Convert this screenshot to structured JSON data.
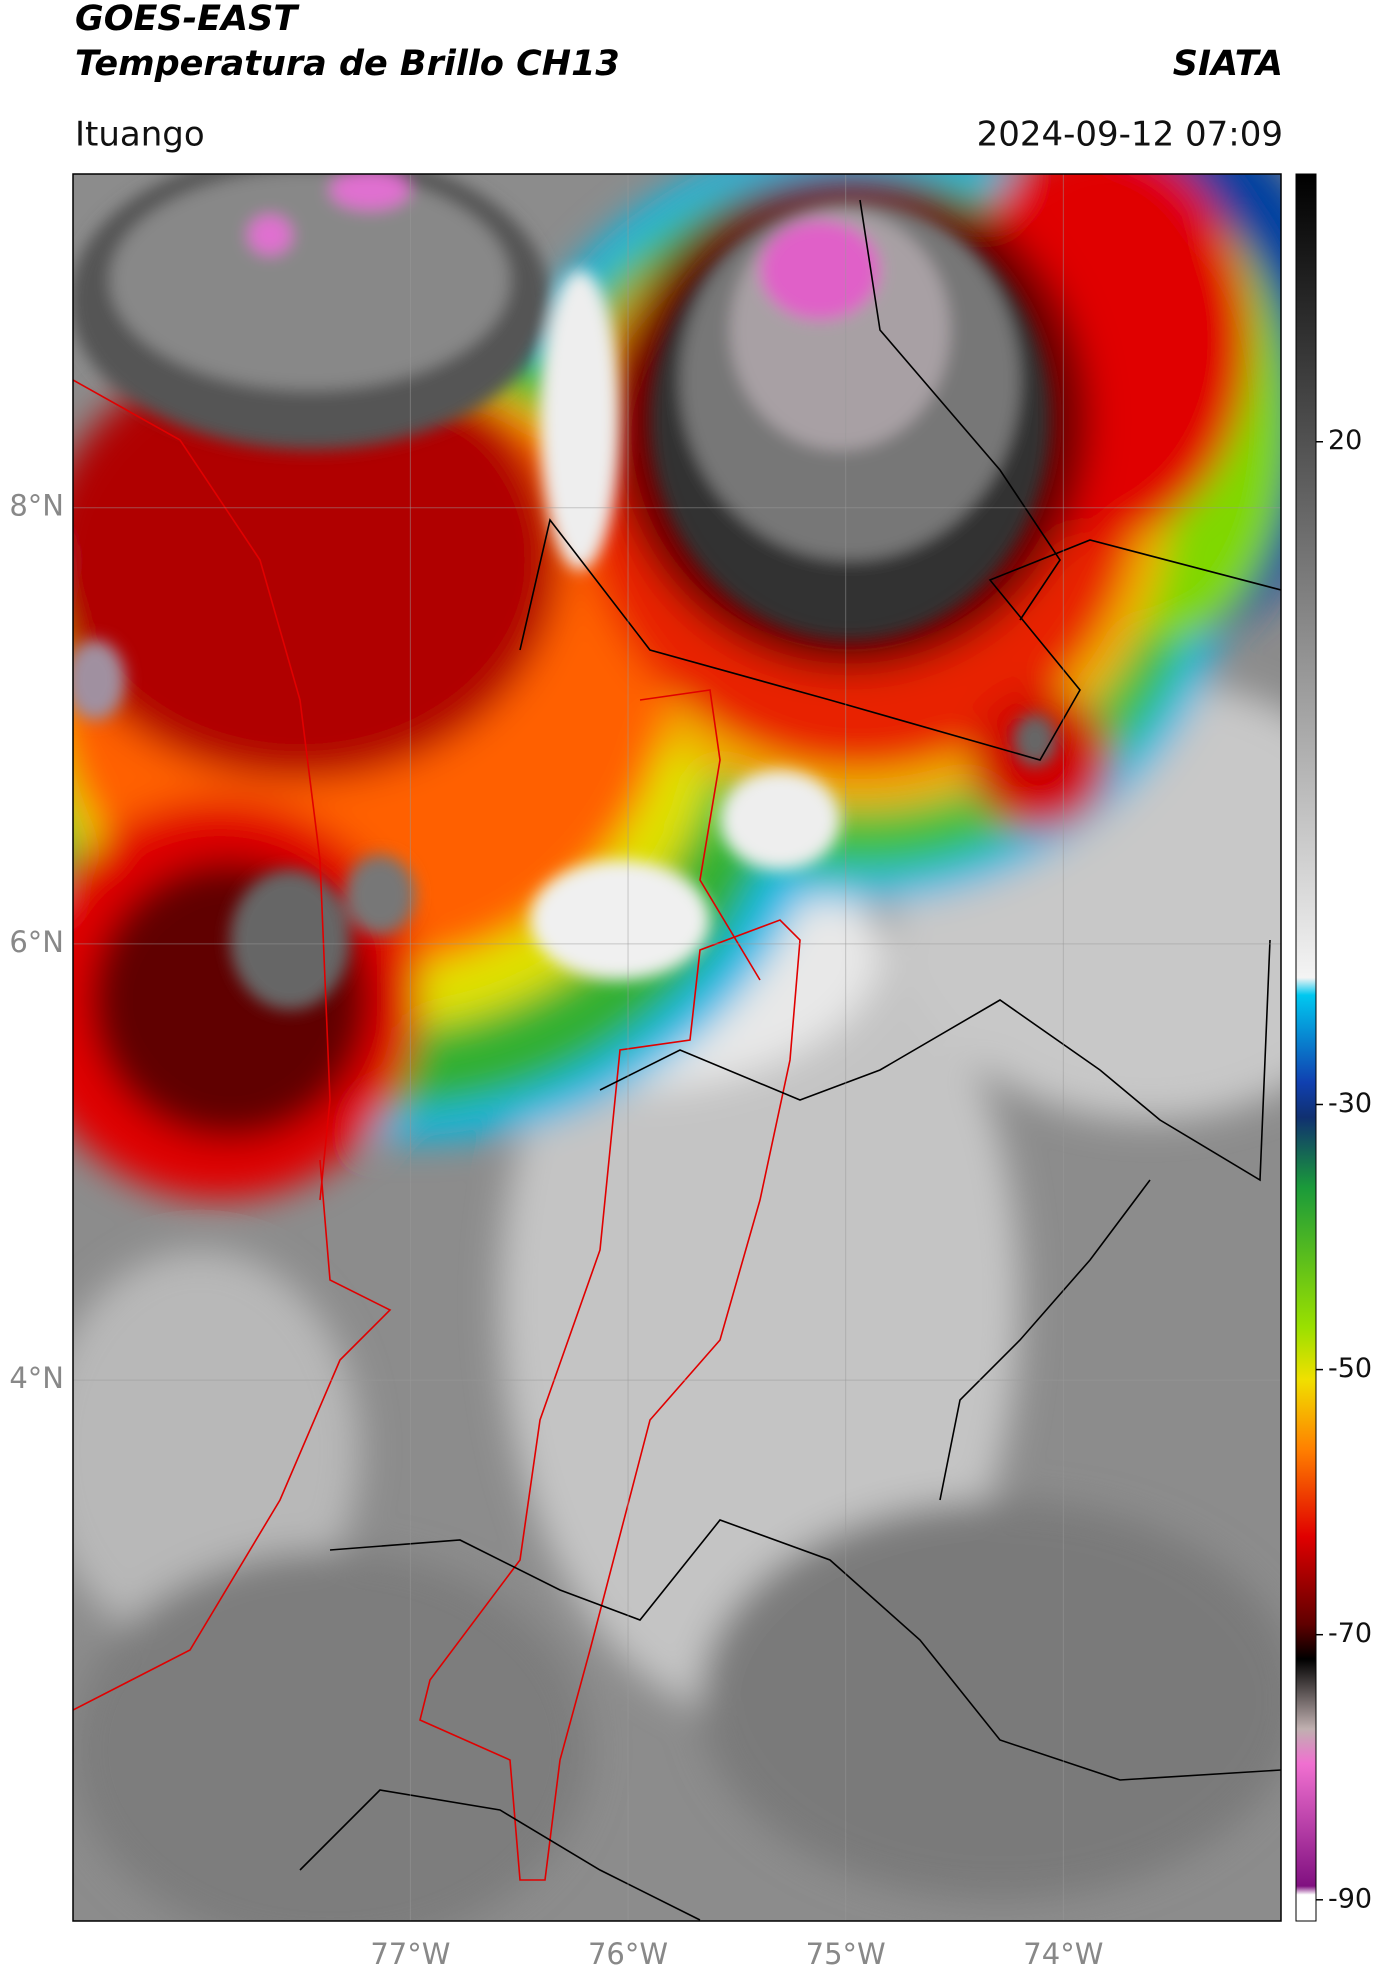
{
  "header": {
    "title": "GOES-EAST",
    "subtitle": "Temperatura de Brillo CH13",
    "brand": "SIATA",
    "location": "Ituango",
    "datetime": "2024-09-12 07:09"
  },
  "map": {
    "xlim": [
      -78.55,
      -73.0
    ],
    "ylim": [
      1.52,
      9.53
    ],
    "xticks": [
      {
        "value": -77,
        "label": "77°W"
      },
      {
        "value": -76,
        "label": "76°W"
      },
      {
        "value": -75,
        "label": "75°W"
      },
      {
        "value": -74,
        "label": "74°W"
      }
    ],
    "yticks": [
      {
        "value": 8,
        "label": "8°N"
      },
      {
        "value": 6,
        "label": "6°N"
      },
      {
        "value": 4,
        "label": "4°N"
      }
    ],
    "grid": true
  },
  "colorbar": {
    "lim": [
      -91.6,
      40.2
    ],
    "ticks": [
      20,
      -30,
      -50,
      -70,
      -90
    ]
  }
}
